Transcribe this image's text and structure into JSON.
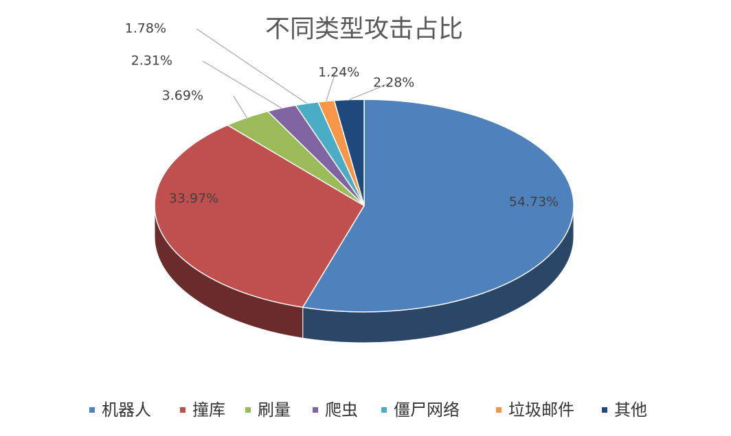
{
  "chart_data": {
    "type": "pie",
    "title": "不同类型攻击占比",
    "categories": [
      "机器人",
      "撞库",
      "刷量",
      "爬虫",
      "僵尸网络",
      "垃圾邮件",
      "其他"
    ],
    "values": [
      54.73,
      33.97,
      3.69,
      2.31,
      1.78,
      1.24,
      2.28
    ],
    "value_labels": [
      "54.73%",
      "33.97%",
      "3.69%",
      "2.31%",
      "1.78%",
      "1.24%",
      "2.28%"
    ],
    "colors": [
      "#4f81bd",
      "#c0504d",
      "#9bbb59",
      "#8064a2",
      "#4bacc6",
      "#f79646",
      "#1f497d"
    ],
    "legend": "bottom"
  }
}
